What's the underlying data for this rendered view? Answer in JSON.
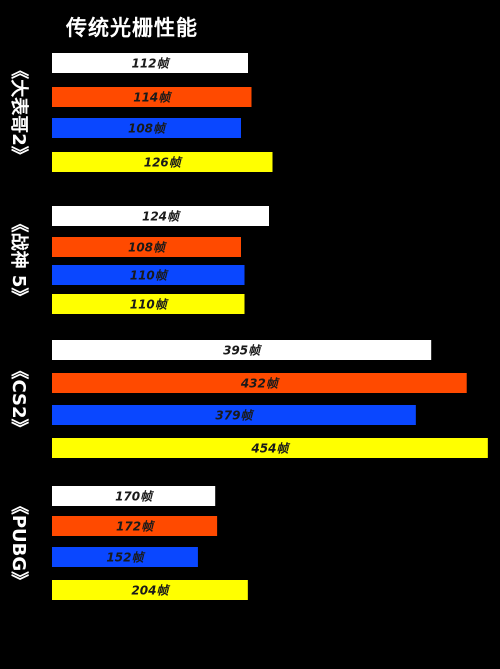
{
  "title": "传统光栅性能",
  "colors": {
    "background": "#000000",
    "label_text": "#ffffff",
    "bar_text": "#1a1a1a"
  },
  "chart_data": {
    "type": "bar",
    "orientation": "horizontal",
    "title": "传统光栅性能",
    "value_suffix": "帧",
    "series_colors": [
      "#ffffff",
      "#ff4a00",
      "#0a47ff",
      "#ffff00"
    ],
    "groups": [
      {
        "label": "《大表哥2》",
        "values": [
          112,
          114,
          108,
          126
        ]
      },
      {
        "label": "《战神 5》",
        "values": [
          124,
          108,
          110,
          110
        ]
      },
      {
        "label": "《CS2》",
        "values": [
          395,
          432,
          379,
          454
        ]
      },
      {
        "label": "《PUBG》",
        "values": [
          170,
          172,
          152,
          204
        ]
      }
    ]
  }
}
